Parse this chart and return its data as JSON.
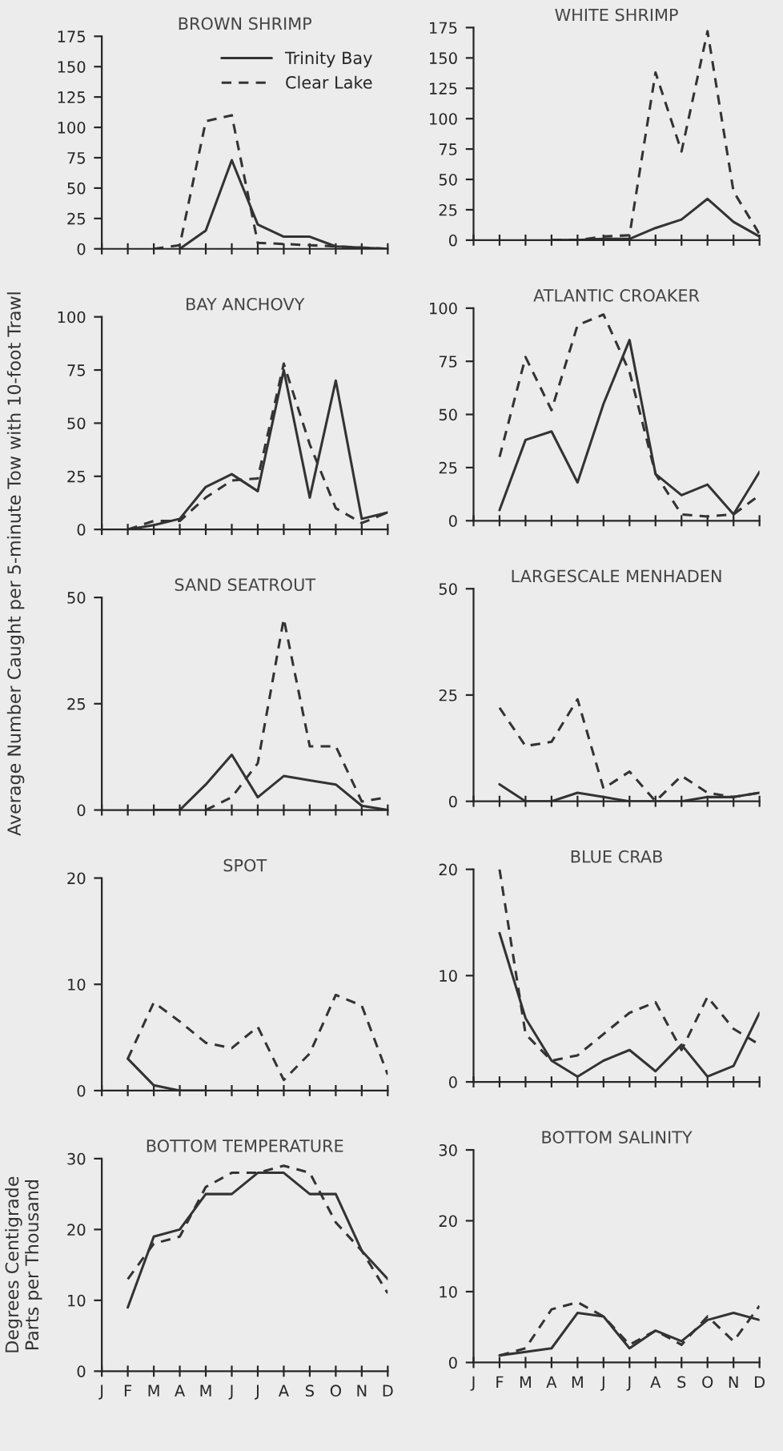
{
  "chart_data": [
    {
      "type": "line",
      "title": "BROWN SHRIMP",
      "ylabel": "Average Number Caught per 5-minute Tow with 10-foot Trawl",
      "categories": [
        null,
        null,
        null,
        null,
        null,
        null,
        null,
        null,
        null,
        null,
        null,
        null
      ],
      "ylim": [
        0,
        175
      ],
      "yticks": [
        0,
        25,
        50,
        75,
        100,
        125,
        150,
        175
      ],
      "legend": "top right",
      "series": [
        {
          "name": "Trinity Bay",
          "color": "#333333",
          "line_style": "solid",
          "values": [
            null,
            null,
            null,
            0,
            15,
            73,
            20,
            10,
            10,
            2,
            1,
            0
          ]
        },
        {
          "name": "Clear Lake",
          "color": "#333333",
          "line_style": "dashed",
          "values": [
            null,
            null,
            0,
            3,
            105,
            110,
            5,
            4,
            3,
            2,
            1,
            0
          ]
        }
      ]
    },
    {
      "type": "line",
      "title": "WHITE SHRIMP",
      "categories": [
        null,
        null,
        null,
        null,
        null,
        null,
        null,
        null,
        null,
        null,
        null,
        null
      ],
      "ylim": [
        0,
        175
      ],
      "yticks": [
        0,
        25,
        50,
        75,
        100,
        125,
        150,
        175
      ],
      "series": [
        {
          "color": "#333333",
          "line_style": "solid",
          "values": [
            null,
            null,
            null,
            0,
            0,
            1,
            1,
            10,
            17,
            34,
            15,
            3
          ]
        },
        {
          "color": "#333333",
          "line_style": "dashed",
          "values": [
            null,
            null,
            null,
            0,
            0,
            3,
            4,
            138,
            73,
            172,
            40,
            5
          ]
        }
      ]
    },
    {
      "type": "line",
      "title": "BAY ANCHOVY",
      "categories": [
        null,
        null,
        null,
        null,
        null,
        null,
        null,
        null,
        null,
        null,
        null,
        null
      ],
      "ylim": [
        0,
        100
      ],
      "yticks": [
        0,
        25,
        50,
        75,
        100
      ],
      "series": [
        {
          "color": "#333333",
          "line_style": "solid",
          "values": [
            null,
            0,
            2,
            5,
            20,
            26,
            18,
            75,
            15,
            70,
            5,
            8
          ]
        },
        {
          "color": "#333333",
          "line_style": "dashed",
          "values": [
            null,
            0,
            4,
            4,
            15,
            23,
            24,
            78,
            40,
            10,
            3,
            8
          ]
        }
      ]
    },
    {
      "type": "line",
      "title": "ATLANTIC CROAKER",
      "categories": [
        null,
        null,
        null,
        null,
        null,
        null,
        null,
        null,
        null,
        null,
        null,
        null
      ],
      "ylim": [
        0,
        100
      ],
      "yticks": [
        0,
        25,
        50,
        75,
        100
      ],
      "series": [
        {
          "color": "#333333",
          "line_style": "solid",
          "values": [
            null,
            5,
            38,
            42,
            18,
            55,
            85,
            22,
            12,
            17,
            3,
            23
          ]
        },
        {
          "color": "#333333",
          "line_style": "dashed",
          "values": [
            null,
            30,
            77,
            52,
            92,
            97,
            70,
            22,
            3,
            2,
            3,
            12
          ]
        }
      ]
    },
    {
      "type": "line",
      "title": "SAND SEATROUT",
      "categories": [
        null,
        null,
        null,
        null,
        null,
        null,
        null,
        null,
        null,
        null,
        null,
        null
      ],
      "ylim": [
        0,
        50
      ],
      "yticks": [
        0,
        25,
        50
      ],
      "series": [
        {
          "color": "#333333",
          "line_style": "solid",
          "values": [
            null,
            null,
            0,
            0,
            6,
            13,
            3,
            8,
            7,
            6,
            1,
            0
          ]
        },
        {
          "color": "#333333",
          "line_style": "dashed",
          "values": [
            null,
            null,
            null,
            null,
            0,
            3,
            11,
            45,
            15,
            15,
            2,
            3
          ]
        }
      ]
    },
    {
      "type": "line",
      "title": "LARGESCALE MENHADEN",
      "categories": [
        null,
        null,
        null,
        null,
        null,
        null,
        null,
        null,
        null,
        null,
        null,
        null
      ],
      "ylim": [
        0,
        50
      ],
      "yticks": [
        0,
        25,
        50
      ],
      "series": [
        {
          "color": "#333333",
          "line_style": "solid",
          "values": [
            null,
            4,
            0,
            0,
            2,
            1,
            0,
            0,
            0,
            1,
            1,
            2
          ]
        },
        {
          "color": "#333333",
          "line_style": "dashed",
          "values": [
            null,
            22,
            13,
            14,
            24,
            3,
            7,
            0,
            6,
            2,
            1,
            2
          ]
        }
      ]
    },
    {
      "type": "line",
      "title": "SPOT",
      "categories": [
        null,
        null,
        null,
        null,
        null,
        null,
        null,
        null,
        null,
        null,
        null,
        null
      ],
      "ylim": [
        0,
        20
      ],
      "yticks": [
        0,
        10,
        20
      ],
      "series": [
        {
          "color": "#333333",
          "line_style": "solid",
          "values": [
            null,
            3,
            0.5,
            0,
            0,
            null,
            null,
            null,
            null,
            null,
            null,
            null
          ]
        },
        {
          "color": "#333333",
          "line_style": "dashed",
          "values": [
            null,
            3,
            8.3,
            6.5,
            4.5,
            4,
            6,
            1,
            3.5,
            9,
            8,
            1.5
          ]
        }
      ]
    },
    {
      "type": "line",
      "title": "BLUE CRAB",
      "categories": [
        null,
        null,
        null,
        null,
        null,
        null,
        null,
        null,
        null,
        null,
        null,
        null
      ],
      "ylim": [
        0,
        20
      ],
      "yticks": [
        0,
        10,
        20
      ],
      "series": [
        {
          "color": "#333333",
          "line_style": "solid",
          "values": [
            null,
            14,
            6,
            2,
            0.5,
            2,
            3,
            1,
            3.5,
            0.5,
            1.5,
            6.5
          ]
        },
        {
          "color": "#333333",
          "line_style": "dashed",
          "values": [
            null,
            20,
            4.5,
            2,
            2.5,
            4.5,
            6.5,
            7.5,
            3,
            8,
            5,
            3.5
          ]
        }
      ]
    },
    {
      "type": "line",
      "title": "BOTTOM TEMPERATURE",
      "ylabel": "Degrees Centigrade\nParts per Thousand",
      "categories": [
        "J",
        "F",
        "M",
        "A",
        "M",
        "J",
        "J",
        "A",
        "S",
        "O",
        "N",
        "D"
      ],
      "ylim": [
        0,
        30
      ],
      "yticks": [
        0,
        10,
        20,
        30
      ],
      "series": [
        {
          "color": "#333333",
          "line_style": "solid",
          "values": [
            null,
            9,
            19,
            20,
            25,
            25,
            28,
            28,
            25,
            25,
            17,
            13
          ]
        },
        {
          "color": "#333333",
          "line_style": "dashed",
          "values": [
            null,
            13,
            18,
            19,
            26,
            28,
            28,
            29,
            28,
            21,
            17,
            11
          ]
        }
      ]
    },
    {
      "type": "line",
      "title": "BOTTOM SALINITY",
      "categories": [
        "J",
        "F",
        "M",
        "A",
        "M",
        "J",
        "J",
        "A",
        "S",
        "O",
        "N",
        "D"
      ],
      "ylim": [
        0,
        30
      ],
      "yticks": [
        0,
        10,
        20,
        30
      ],
      "series": [
        {
          "color": "#333333",
          "line_style": "solid",
          "values": [
            null,
            1,
            1.5,
            2,
            7,
            6.5,
            2,
            4.5,
            3,
            6,
            7,
            6
          ]
        },
        {
          "color": "#333333",
          "line_style": "dashed",
          "values": [
            null,
            1,
            2,
            7.5,
            8.5,
            6.5,
            2.5,
            4.5,
            2.5,
            6.5,
            3,
            8
          ]
        }
      ]
    }
  ]
}
